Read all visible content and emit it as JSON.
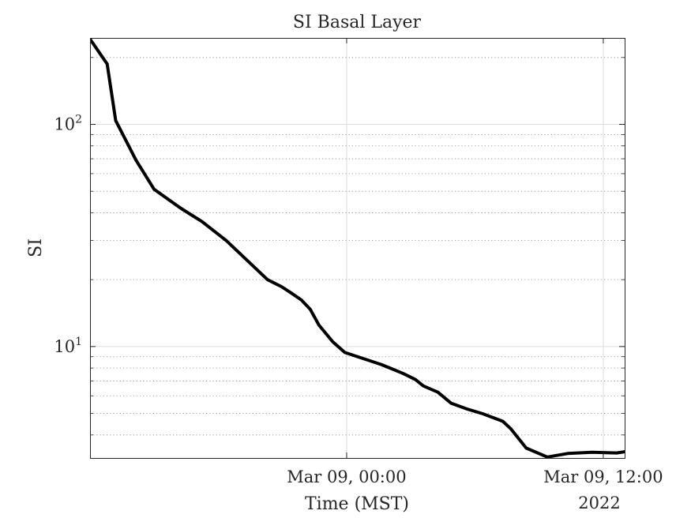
{
  "chart_data": {
    "type": "line",
    "title": "SI Basal Layer",
    "xlabel": "Time (MST)",
    "ylabel": "SI",
    "x_secondary_label": "2022",
    "yscale": "log",
    "ylim": [
      3.15,
      245
    ],
    "xlim": [
      "2022-03-08 12:00",
      "2022-03-09 13:00"
    ],
    "x_ticks": [
      {
        "x": "2022-03-09 00:00",
        "label": "Mar 09, 00:00"
      },
      {
        "x": "2022-03-09 12:00",
        "label": "Mar 09, 12:00"
      }
    ],
    "y_ticks": [
      {
        "value": 10,
        "base": "10",
        "exp": "1"
      },
      {
        "value": 100,
        "base": "10",
        "exp": "2"
      }
    ],
    "grid": true,
    "minor_grid": true,
    "line_color": "#000000",
    "series": [
      {
        "x": [
          "2022-03-08 12:00",
          "2022-03-08 12:48",
          "2022-03-08 13:12",
          "2022-03-08 14:09",
          "2022-03-08 15:00",
          "2022-03-08 16:14",
          "2022-03-08 17:14",
          "2022-03-08 18:22",
          "2022-03-08 19:26",
          "2022-03-08 20:18",
          "2022-03-08 20:57",
          "2022-03-08 21:25",
          "2022-03-08 21:53",
          "2022-03-08 22:18",
          "2022-03-08 22:42",
          "2022-03-08 23:21",
          "2022-03-08 23:55",
          "2022-03-09 01:37",
          "2022-03-09 02:03",
          "2022-03-09 02:40",
          "2022-03-09 03:13",
          "2022-03-09 03:35",
          "2022-03-09 04:16",
          "2022-03-09 04:53",
          "2022-03-09 05:38",
          "2022-03-09 06:22",
          "2022-03-09 07:18",
          "2022-03-09 07:40",
          "2022-03-09 08:24",
          "2022-03-09 09:23",
          "2022-03-09 10:20",
          "2022-03-09 11:29",
          "2022-03-09 12:38",
          "2022-03-09 13:00"
        ],
        "y": [
          242,
          187,
          104,
          69,
          51,
          42,
          36.5,
          30,
          24,
          20,
          18.6,
          17.4,
          16.2,
          14.7,
          12.5,
          10.5,
          9.4,
          8.3,
          7.98,
          7.54,
          7.1,
          6.65,
          6.23,
          5.56,
          5.23,
          4.98,
          4.61,
          4.27,
          3.49,
          3.18,
          3.3,
          3.34,
          3.32,
          3.36
        ]
      }
    ]
  }
}
